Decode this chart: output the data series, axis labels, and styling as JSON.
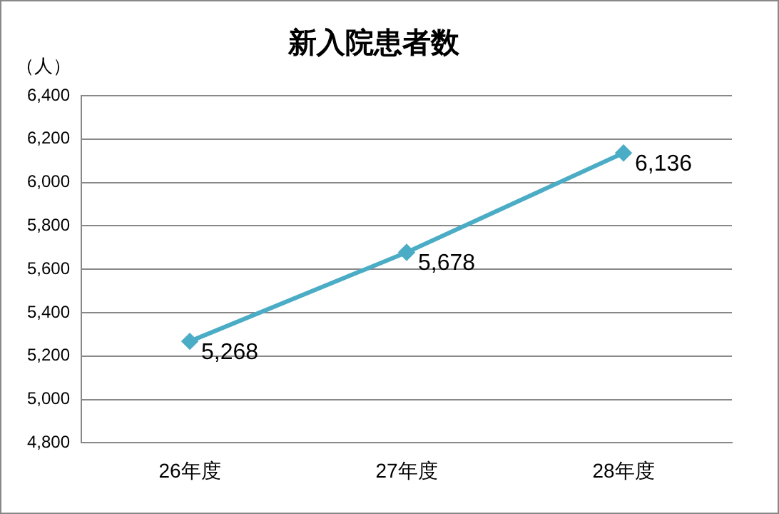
{
  "chart_data": {
    "type": "line",
    "title": "新入院患者数",
    "ylabel": "（人）",
    "categories": [
      "26年度",
      "27年度",
      "28年度"
    ],
    "series": [
      {
        "color": "#4bacc6",
        "values": [
          5268,
          5678,
          6136
        ],
        "value_labels": [
          "5,268",
          "5,678",
          "6,136"
        ]
      }
    ],
    "ylim": [
      4800,
      6400
    ],
    "yticks": [
      {
        "value": 4800,
        "label": "4,800"
      },
      {
        "value": 5000,
        "label": "5,000"
      },
      {
        "value": 5200,
        "label": "5,200"
      },
      {
        "value": 5400,
        "label": "5,400"
      },
      {
        "value": 5600,
        "label": "5,600"
      },
      {
        "value": 5800,
        "label": "5,800"
      },
      {
        "value": 6000,
        "label": "6,000"
      },
      {
        "value": 6200,
        "label": "6,200"
      },
      {
        "value": 6400,
        "label": "6,400"
      }
    ],
    "grid": "y",
    "legend": false,
    "marker": "diamond",
    "line_style": "solid"
  }
}
